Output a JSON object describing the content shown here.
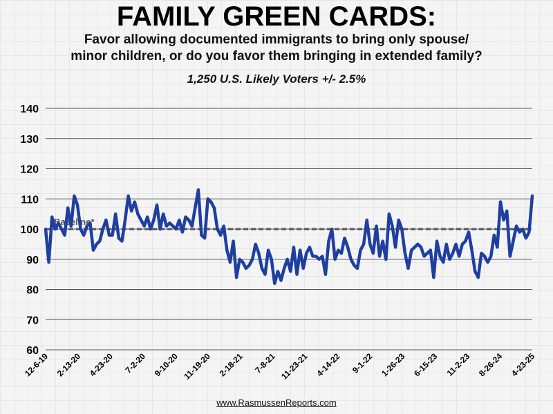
{
  "header": {
    "title": "FAMILY GREEN CARDS:",
    "question_line1": "Favor allowing documented immigrants to bring only spouse/",
    "question_line2": "minor children, or do you favor them bringing in extended family?",
    "sample": "1,250 U.S. Likely Voters +/- 2.5%"
  },
  "footer": {
    "source": "www.RasmussenReports.com"
  },
  "chart_data": {
    "type": "line",
    "title": "FAMILY GREEN CARDS:",
    "xlabel": "",
    "ylabel": "",
    "ylim": [
      60,
      140
    ],
    "yticks": [
      60,
      70,
      80,
      90,
      100,
      110,
      120,
      130,
      140
    ],
    "grid": "horizontal",
    "x_tick_labels": [
      "12-6-19",
      "2-13-20",
      "4-23-20",
      "7-2-20",
      "9-10-20",
      "11-19-20",
      "2-18-21",
      "7-8-21",
      "11-23-21",
      "4-14-22",
      "9-1-22",
      "1-26-23",
      "6-15-23",
      "11-2-23",
      "8-26-24",
      "4-23-25"
    ],
    "baseline": {
      "label": "Baseline*",
      "value": 100,
      "color": "#555555"
    },
    "series": [
      {
        "color": "#1f3fa0",
        "values": [
          100,
          89,
          104,
          100,
          102,
          100,
          98,
          107,
          101,
          111,
          108,
          100,
          98,
          101,
          102,
          93,
          95,
          96,
          100,
          103,
          98,
          98,
          105,
          97,
          96,
          103,
          111,
          106,
          109,
          105,
          103,
          101,
          104,
          100,
          103,
          108,
          100,
          105,
          101,
          102,
          101,
          100,
          103,
          99,
          104,
          103,
          101,
          107,
          113,
          98,
          97,
          110,
          109,
          107,
          100,
          98,
          101,
          93,
          89,
          96,
          84,
          90,
          89,
          87,
          88,
          90,
          95,
          92,
          87,
          85,
          93,
          90,
          82,
          86,
          83,
          87,
          90,
          86,
          94,
          85,
          93,
          87,
          92,
          94,
          91,
          91,
          90,
          91,
          85,
          96,
          100,
          90,
          93,
          92,
          97,
          94,
          90,
          88,
          87,
          93,
          95,
          103,
          95,
          92,
          101,
          91,
          96,
          90,
          105,
          101,
          94,
          103,
          100,
          92,
          87,
          93,
          94,
          95,
          94,
          91,
          92,
          93,
          84,
          96,
          91,
          89,
          95,
          90,
          92,
          95,
          91,
          95,
          96,
          99,
          93,
          86,
          84,
          92,
          91,
          89,
          91,
          98,
          94,
          109,
          103,
          106,
          91,
          96,
          101,
          99,
          100,
          97,
          99,
          111
        ]
      }
    ]
  }
}
